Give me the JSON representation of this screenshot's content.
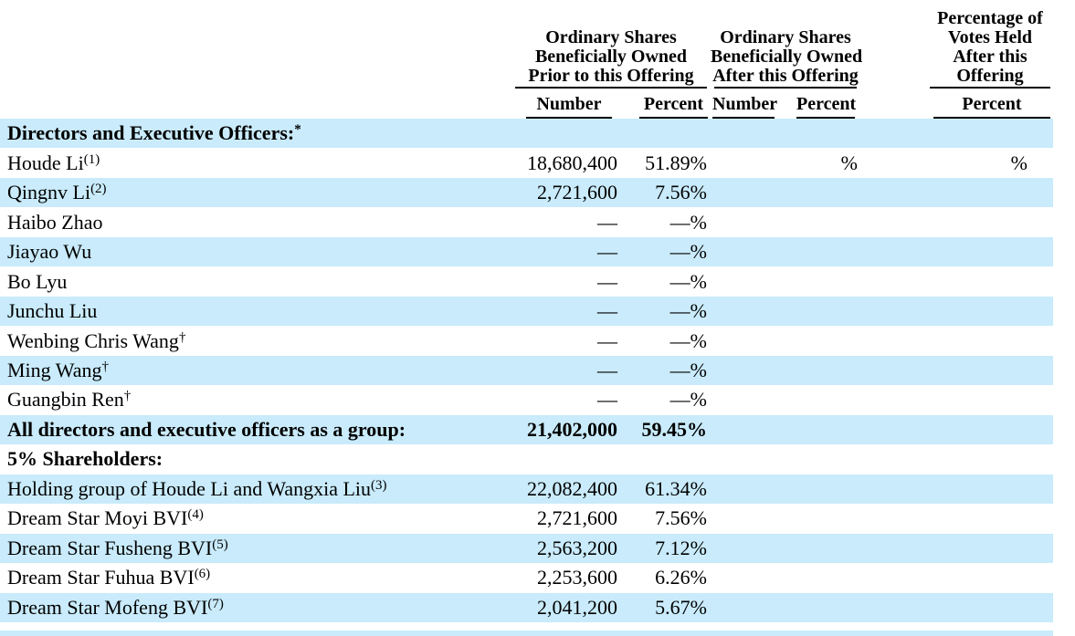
{
  "table": {
    "colors": {
      "row_highlight": "#c9ebfb",
      "text": "#000000"
    },
    "groups": [
      {
        "label": "Ordinary Shares Beneficially Owned Prior to this Offering",
        "lines": [
          "Ordinary Shares",
          "Beneficially Owned",
          "Prior to this Offering"
        ],
        "columns": [
          "Number",
          "Percent"
        ]
      },
      {
        "label": "Ordinary Shares Beneficially Owned After this Offering",
        "lines": [
          "Ordinary Shares",
          "Beneficially Owned",
          "After this Offering"
        ],
        "columns": [
          "Number",
          "Percent"
        ]
      },
      {
        "label": "Percentage of Votes Held After this Offering",
        "lines": [
          "Percentage of",
          "Votes Held",
          "After this",
          "Offering"
        ],
        "columns": [
          "Percent"
        ]
      }
    ],
    "sub_headers": [
      "Number",
      "Percent",
      "Number",
      "Percent",
      "Percent"
    ],
    "rows": [
      {
        "name": "Directors and Executive Officers:",
        "sup": "*",
        "bold": true,
        "prior_number": "",
        "prior_percent": "",
        "after_number": "",
        "after_percent": "",
        "votes_percent": ""
      },
      {
        "name": "Houde Li",
        "sup": "(1)",
        "bold": false,
        "prior_number": "18,680,400",
        "prior_percent": "51.89%",
        "after_number": "",
        "after_percent": "%",
        "votes_percent": "%"
      },
      {
        "name": "Qingnv Li",
        "sup": "(2)",
        "bold": false,
        "prior_number": "2,721,600",
        "prior_percent": "7.56%",
        "after_number": "",
        "after_percent": "",
        "votes_percent": ""
      },
      {
        "name": "Haibo Zhao",
        "sup": "",
        "bold": false,
        "prior_number": "—",
        "prior_percent": "—%",
        "after_number": "",
        "after_percent": "",
        "votes_percent": ""
      },
      {
        "name": "Jiayao Wu",
        "sup": "",
        "bold": false,
        "prior_number": "—",
        "prior_percent": "—%",
        "after_number": "",
        "after_percent": "",
        "votes_percent": ""
      },
      {
        "name": "Bo Lyu",
        "sup": "",
        "bold": false,
        "prior_number": "—",
        "prior_percent": "—%",
        "after_number": "",
        "after_percent": "",
        "votes_percent": ""
      },
      {
        "name": "Junchu Liu",
        "sup": "",
        "bold": false,
        "prior_number": "—",
        "prior_percent": "—%",
        "after_number": "",
        "after_percent": "",
        "votes_percent": ""
      },
      {
        "name": "Wenbing Chris Wang",
        "sup": "†",
        "bold": false,
        "prior_number": "—",
        "prior_percent": "—%",
        "after_number": "",
        "after_percent": "",
        "votes_percent": ""
      },
      {
        "name": "Ming Wang",
        "sup": "†",
        "bold": false,
        "prior_number": "—",
        "prior_percent": "—%",
        "after_number": "",
        "after_percent": "",
        "votes_percent": ""
      },
      {
        "name": "Guangbin Ren",
        "sup": "†",
        "bold": false,
        "prior_number": "—",
        "prior_percent": "—%",
        "after_number": "",
        "after_percent": "",
        "votes_percent": ""
      },
      {
        "name": "All directors and executive officers as a group:",
        "sup": "",
        "bold": true,
        "prior_number": "21,402,000",
        "prior_percent": "59.45%",
        "after_number": "",
        "after_percent": "",
        "votes_percent": ""
      },
      {
        "name": "5% Shareholders:",
        "sup": "",
        "bold": true,
        "prior_number": "",
        "prior_percent": "",
        "after_number": "",
        "after_percent": "",
        "votes_percent": ""
      },
      {
        "name": "Holding group of Houde Li and Wangxia Liu",
        "sup": "(3)",
        "bold": false,
        "prior_number": "22,082,400",
        "prior_percent": "61.34%",
        "after_number": "",
        "after_percent": "",
        "votes_percent": ""
      },
      {
        "name": "Dream Star Moyi BVI",
        "sup": "(4)",
        "bold": false,
        "prior_number": "2,721,600",
        "prior_percent": "7.56%",
        "after_number": "",
        "after_percent": "",
        "votes_percent": ""
      },
      {
        "name": "Dream Star Fusheng BVI",
        "sup": "(5)",
        "bold": false,
        "prior_number": "2,563,200",
        "prior_percent": "7.12%",
        "after_number": "",
        "after_percent": "",
        "votes_percent": ""
      },
      {
        "name": "Dream Star Fuhua BVI",
        "sup": "(6)",
        "bold": false,
        "prior_number": "2,253,600",
        "prior_percent": "6.26%",
        "after_number": "",
        "after_percent": "",
        "votes_percent": ""
      },
      {
        "name": "Dream Star Mofeng BVI",
        "sup": "(7)",
        "bold": false,
        "prior_number": "2,041,200",
        "prior_percent": "5.67%",
        "after_number": "",
        "after_percent": "",
        "votes_percent": ""
      }
    ]
  }
}
